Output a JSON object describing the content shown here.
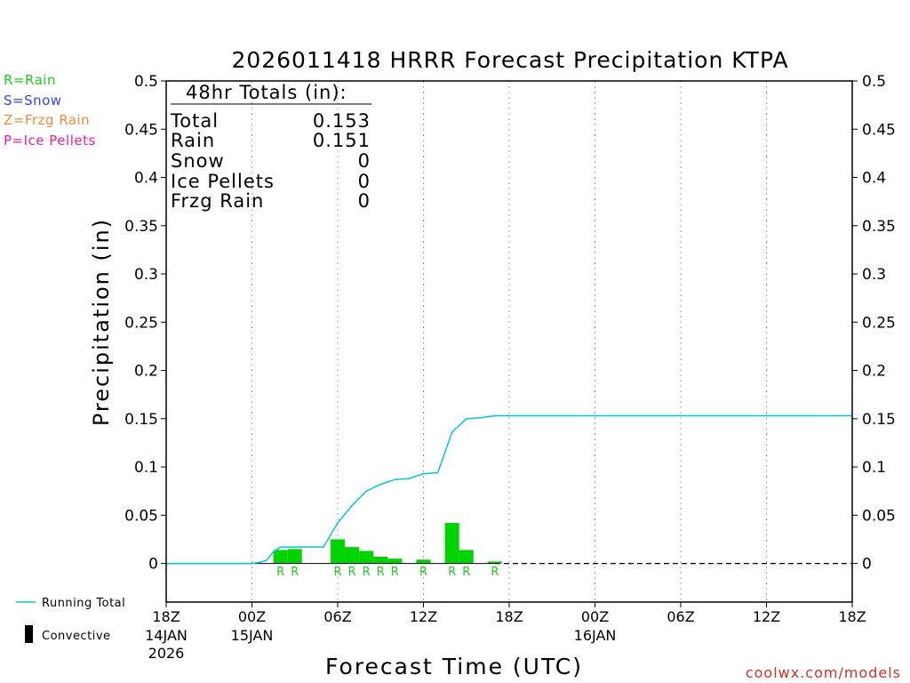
{
  "chart_data": {
    "type": "bar",
    "title": "2026011418 HRRR Forecast Precipitation KTPA",
    "xlabel": "Forecast Time (UTC)",
    "ylabel": "Precipitation (in)",
    "ylim": [
      -0.04,
      0.5
    ],
    "y_ticks": [
      "0",
      "0.05",
      "0.1",
      "0.15",
      "0.2",
      "0.25",
      "0.3",
      "0.35",
      "0.4",
      "0.45",
      "0.5"
    ],
    "x_range_hours": [
      0,
      48
    ],
    "x_ticks": [
      {
        "hour": 0,
        "label": "18Z",
        "sub1": "14JAN",
        "sub2": "2026"
      },
      {
        "hour": 6,
        "label": "00Z",
        "sub1": "15JAN",
        "sub2": ""
      },
      {
        "hour": 12,
        "label": "06Z",
        "sub1": "",
        "sub2": ""
      },
      {
        "hour": 18,
        "label": "12Z",
        "sub1": "",
        "sub2": ""
      },
      {
        "hour": 24,
        "label": "18Z",
        "sub1": "",
        "sub2": ""
      },
      {
        "hour": 30,
        "label": "00Z",
        "sub1": "16JAN",
        "sub2": ""
      },
      {
        "hour": 36,
        "label": "06Z",
        "sub1": "",
        "sub2": ""
      },
      {
        "hour": 42,
        "label": "12Z",
        "sub1": "",
        "sub2": ""
      },
      {
        "hour": 48,
        "label": "18Z",
        "sub1": "",
        "sub2": ""
      }
    ],
    "hourly_precip": [
      {
        "hour": 8,
        "value": 0.014,
        "ptype": "R"
      },
      {
        "hour": 9,
        "value": 0.015,
        "ptype": "R"
      },
      {
        "hour": 12,
        "value": 0.025,
        "ptype": "R"
      },
      {
        "hour": 13,
        "value": 0.017,
        "ptype": "R"
      },
      {
        "hour": 14,
        "value": 0.013,
        "ptype": "R"
      },
      {
        "hour": 15,
        "value": 0.007,
        "ptype": "R"
      },
      {
        "hour": 16,
        "value": 0.005,
        "ptype": "R"
      },
      {
        "hour": 18,
        "value": 0.004,
        "ptype": "R"
      },
      {
        "hour": 20,
        "value": 0.042,
        "ptype": "R"
      },
      {
        "hour": 21,
        "value": 0.014,
        "ptype": "R"
      },
      {
        "hour": 23,
        "value": 0.002,
        "ptype": "R"
      }
    ],
    "running_total": {
      "name": "Running Total",
      "x": [
        0,
        1,
        2,
        3,
        4,
        5,
        6,
        6.5,
        7,
        7.5,
        8,
        9,
        10,
        11,
        12,
        13,
        14,
        15,
        16,
        17,
        18,
        19,
        20,
        21,
        22,
        23,
        24,
        30,
        36,
        42,
        48
      ],
      "y": [
        0,
        0,
        0,
        0,
        0,
        0,
        0,
        0.001,
        0.003,
        0.012,
        0.017,
        0.017,
        0.017,
        0.017,
        0.042,
        0.06,
        0.075,
        0.082,
        0.087,
        0.088,
        0.093,
        0.094,
        0.136,
        0.15,
        0.151,
        0.153,
        0.153,
        0.153,
        0.153,
        0.153,
        0.153
      ]
    },
    "dashed_zero_line_from_hour": 23,
    "totals_box": {
      "heading": "48hr Totals (in):",
      "rows": [
        {
          "label": "Total",
          "value": "0.153"
        },
        {
          "label": "Rain",
          "value": "0.151"
        },
        {
          "label": "Snow",
          "value": "0"
        },
        {
          "label": "Ice Pellets",
          "value": "0"
        },
        {
          "label": "Frzg Rain",
          "value": "0"
        }
      ]
    },
    "colors": {
      "bar": "#00d400",
      "running_total": "#00c8d2",
      "rain": "#22cc22",
      "snow": "#3344ee",
      "frzg_rain": "#f08a3c",
      "ice_pellets": "#ee1e9e",
      "grid": "#aaaaaa"
    }
  },
  "ptype_legend": [
    {
      "text": "R=Rain",
      "color": "#22cc22"
    },
    {
      "text": "S=Snow",
      "color": "#3344ee"
    },
    {
      "text": "Z=Frzg Rain",
      "color": "#f08a3c"
    },
    {
      "text": "P=Ice Pellets",
      "color": "#ee1e9e"
    }
  ],
  "bottom_legend": {
    "running_total_label": "Running Total",
    "convective_label": "Convective"
  },
  "watermark": "coolwx.com/models"
}
